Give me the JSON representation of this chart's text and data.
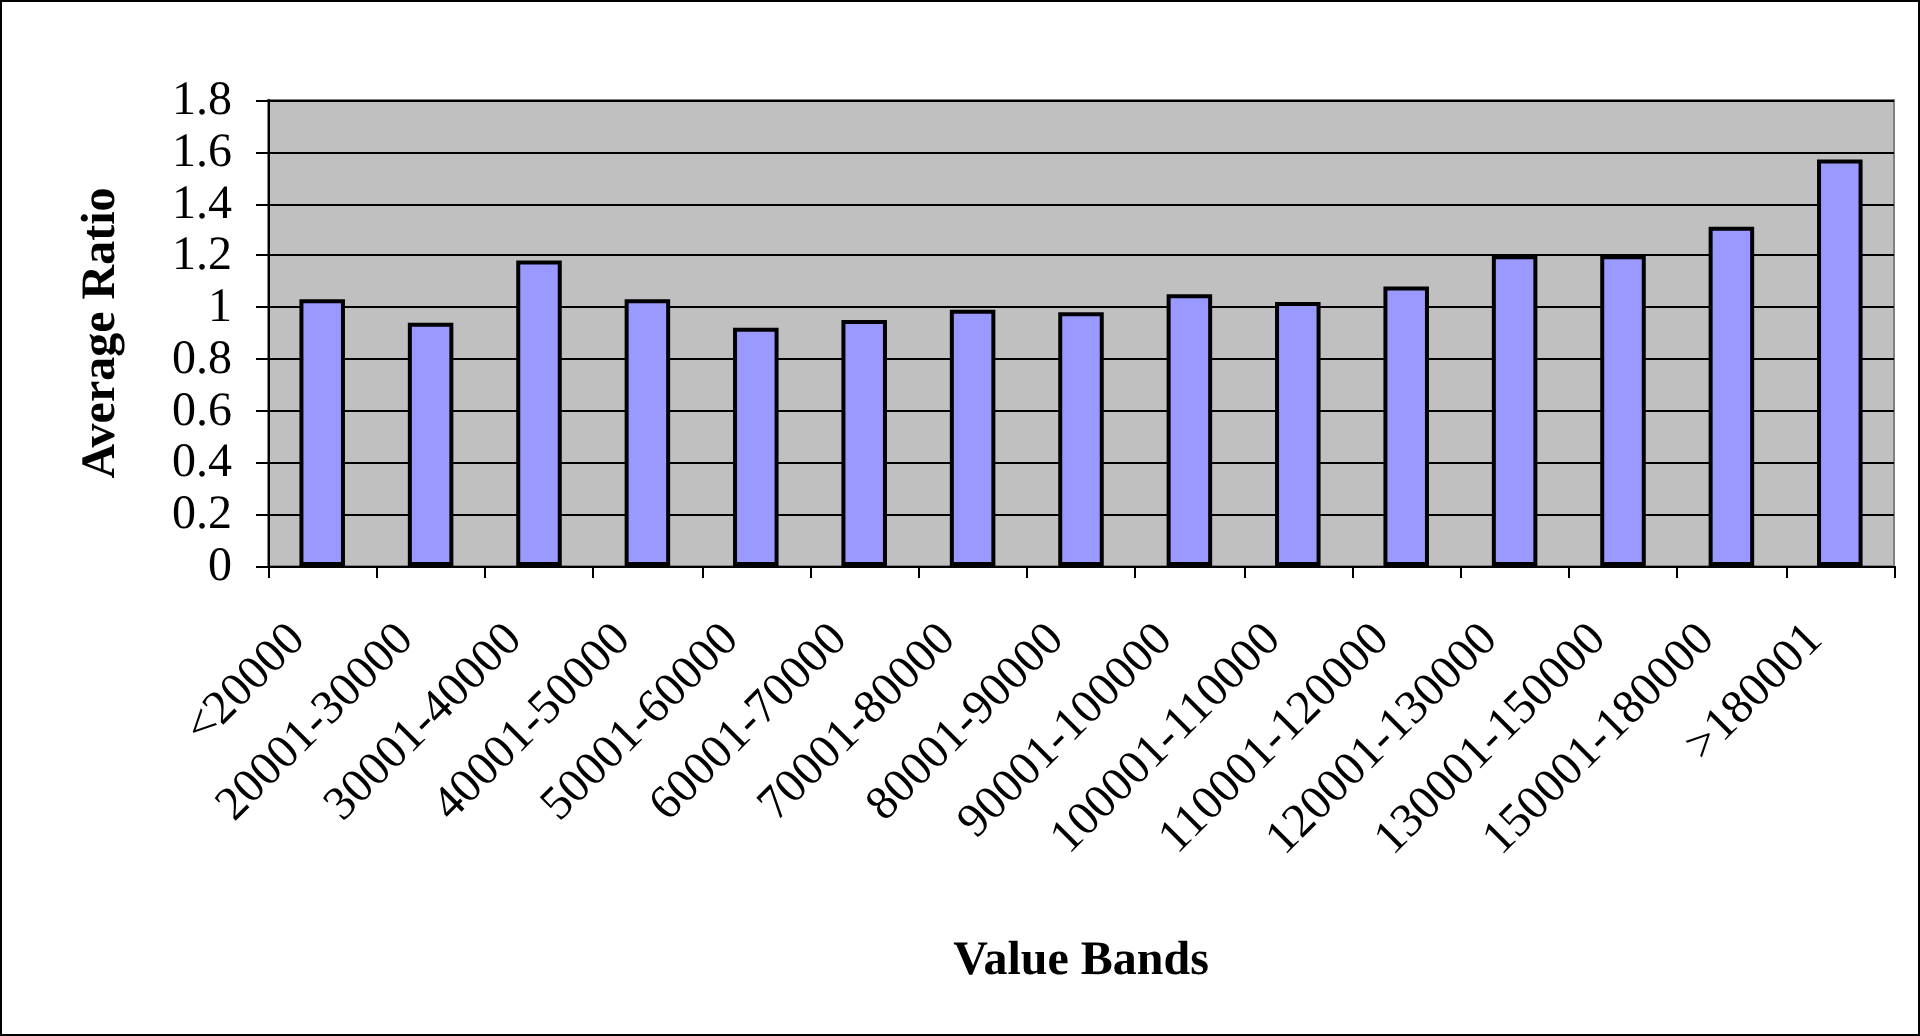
{
  "chart_data": {
    "type": "bar",
    "xlabel": "Value Bands",
    "ylabel": "Average Ratio",
    "categories": [
      "<20000",
      "20001-30000",
      "30001-40000",
      "40001-50000",
      "50001-60000",
      "60001-70000",
      "70001-80000",
      "80001-90000",
      "90001-100000",
      "100001-110000",
      "110001-120000",
      "120001-130000",
      "130001-150000",
      "150001-180000",
      ">180001"
    ],
    "values": [
      1.03,
      0.94,
      1.18,
      1.03,
      0.92,
      0.95,
      0.99,
      0.98,
      1.05,
      1.02,
      1.08,
      1.2,
      1.2,
      1.31,
      1.57
    ],
    "color": "#9999ff",
    "ylim": [
      0,
      1.8
    ],
    "yticks": [
      0,
      0.2,
      0.4,
      0.6,
      0.8,
      1,
      1.2,
      1.4,
      1.6,
      1.8
    ],
    "grid": "y"
  }
}
